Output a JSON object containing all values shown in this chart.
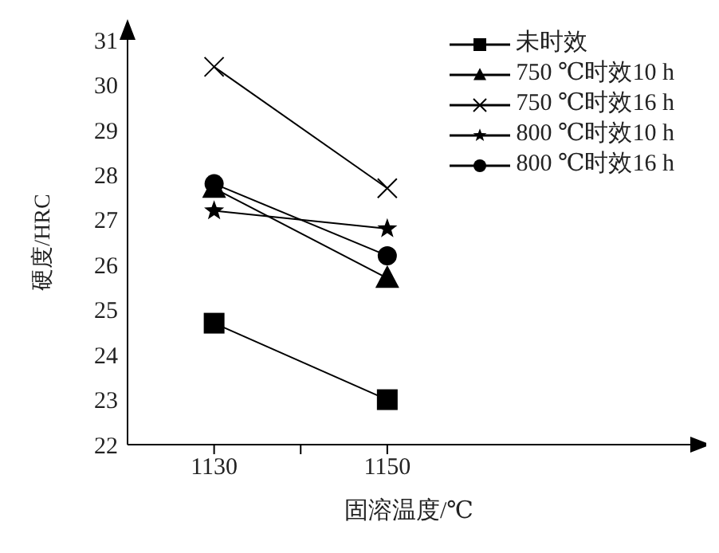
{
  "chart_data": {
    "type": "line",
    "xlabel": "固溶温度/℃",
    "ylabel": "硬度/HRC",
    "x": [
      1130,
      1150
    ],
    "xlim": [
      1120,
      1185
    ],
    "xticks": [
      1130,
      {
        "value": 1140,
        "label": null
      },
      1150
    ],
    "ylim": [
      22,
      31
    ],
    "yticks": [
      22,
      23,
      24,
      25,
      26,
      27,
      28,
      29,
      30,
      31
    ],
    "grid": false,
    "legend": "top right",
    "line_style": "solid",
    "series": [
      {
        "name": "未时效",
        "color": "#000000",
        "marker": "square",
        "values": [
          24.7,
          23.0
        ]
      },
      {
        "name": "750 ℃时效10 h",
        "color": "#000000",
        "marker": "triangle",
        "values": [
          27.7,
          25.7
        ]
      },
      {
        "name": "750 ℃时效16 h",
        "color": "#000000",
        "marker": "cross",
        "values": [
          30.4,
          27.7
        ]
      },
      {
        "name": "800 ℃时效10 h",
        "color": "#000000",
        "marker": "star",
        "values": [
          27.2,
          26.8
        ]
      },
      {
        "name": "800 ℃时效16 h",
        "color": "#000000",
        "marker": "circle",
        "values": [
          27.8,
          26.2
        ]
      }
    ]
  }
}
